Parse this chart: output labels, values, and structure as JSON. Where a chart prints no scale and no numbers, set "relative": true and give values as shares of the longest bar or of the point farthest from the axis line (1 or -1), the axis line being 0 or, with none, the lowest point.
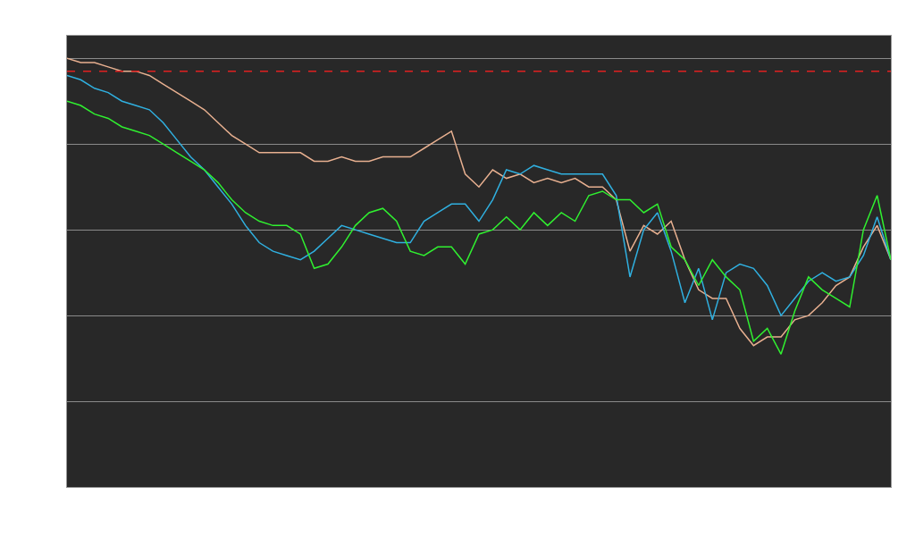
{
  "chart_data": {
    "type": "line",
    "relative": true,
    "grid": true,
    "line_style": "solid",
    "categories": [
      null,
      null,
      null,
      null,
      null,
      null,
      null,
      null,
      null,
      null,
      null,
      null,
      null,
      null,
      null,
      null,
      null,
      null,
      null,
      null,
      null,
      null,
      null,
      null,
      null,
      null,
      null,
      null,
      null,
      null,
      null,
      null,
      null,
      null,
      null,
      null,
      null,
      null,
      null,
      null,
      null,
      null,
      null,
      null,
      null,
      null,
      null,
      null,
      null,
      null,
      null,
      null,
      null,
      null,
      null,
      null,
      null,
      null,
      null,
      null,
      null
    ],
    "series": [
      {
        "color": "#e8b090",
        "values": [
          1.0,
          0.99,
          0.99,
          0.98,
          0.97,
          0.97,
          0.96,
          0.94,
          0.92,
          0.9,
          0.88,
          0.85,
          0.82,
          0.8,
          0.78,
          0.78,
          0.78,
          0.78,
          0.76,
          0.76,
          0.77,
          0.76,
          0.76,
          0.77,
          0.77,
          0.77,
          0.79,
          0.81,
          0.83,
          0.73,
          0.7,
          0.74,
          0.72,
          0.73,
          0.71,
          0.72,
          0.71,
          0.72,
          0.7,
          0.7,
          0.67,
          0.55,
          0.61,
          0.59,
          0.62,
          0.53,
          0.46,
          0.44,
          0.44,
          0.37,
          0.33,
          0.35,
          0.35,
          0.39,
          0.4,
          0.43,
          0.47,
          0.49,
          0.56,
          0.61,
          0.53
        ]
      },
      {
        "color": "#30b0e0",
        "values": [
          0.96,
          0.95,
          0.93,
          0.92,
          0.9,
          0.89,
          0.88,
          0.85,
          0.81,
          0.77,
          0.74,
          0.7,
          0.66,
          0.61,
          0.57,
          0.55,
          0.54,
          0.53,
          0.55,
          0.58,
          0.61,
          0.6,
          0.59,
          0.58,
          0.57,
          0.57,
          0.62,
          0.64,
          0.66,
          0.66,
          0.62,
          0.67,
          0.74,
          0.73,
          0.75,
          0.74,
          0.73,
          0.73,
          0.73,
          0.73,
          0.68,
          0.49,
          0.6,
          0.64,
          0.55,
          0.43,
          0.51,
          0.39,
          0.5,
          0.52,
          0.51,
          0.47,
          0.4,
          0.44,
          0.48,
          0.5,
          0.48,
          0.49,
          0.54,
          0.63,
          0.53
        ]
      },
      {
        "color": "#30f030",
        "values": [
          0.9,
          0.89,
          0.87,
          0.86,
          0.84,
          0.83,
          0.82,
          0.8,
          0.78,
          0.76,
          0.74,
          0.71,
          0.67,
          0.64,
          0.62,
          0.61,
          0.61,
          0.59,
          0.51,
          0.52,
          0.56,
          0.61,
          0.64,
          0.65,
          0.62,
          0.55,
          0.54,
          0.56,
          0.56,
          0.52,
          0.59,
          0.6,
          0.63,
          0.6,
          0.64,
          0.61,
          0.64,
          0.62,
          0.68,
          0.69,
          0.67,
          0.67,
          0.64,
          0.66,
          0.56,
          0.53,
          0.47,
          0.53,
          0.49,
          0.46,
          0.34,
          0.37,
          0.31,
          0.41,
          0.49,
          0.46,
          0.44,
          0.42,
          0.6,
          0.68,
          0.53
        ]
      }
    ],
    "ref_lines": [
      {
        "axis": "y",
        "value": 0.97,
        "color": "#e02020",
        "line_style": "dashed"
      }
    ]
  }
}
